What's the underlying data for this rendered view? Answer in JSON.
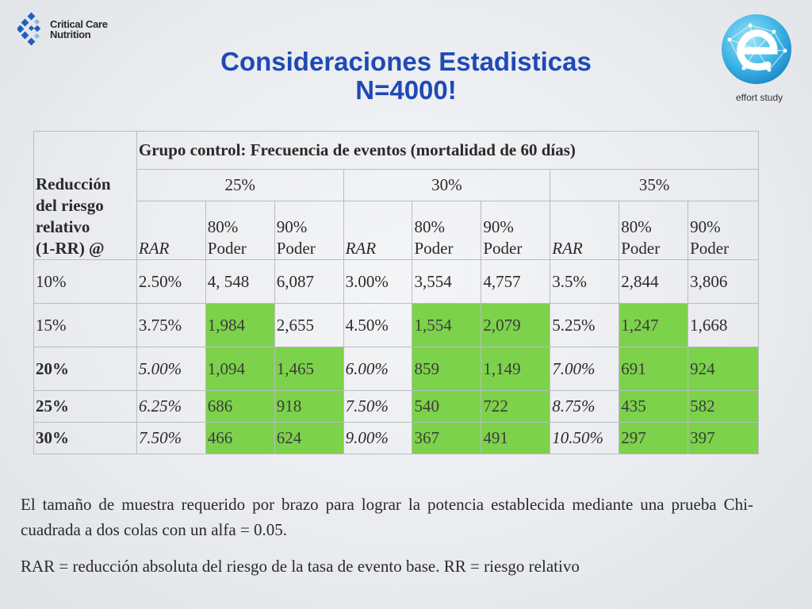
{
  "logo_left": {
    "line1": "Critical Care",
    "line2": "Nutrition",
    "icon": "ccn-logo-icon"
  },
  "logo_right": {
    "label": "effort study",
    "icon": "effort-globe-icon"
  },
  "title": {
    "line1": "Consideraciones Estadisticas",
    "line2": "N=4000!"
  },
  "table": {
    "row_header": [
      "Reducción",
      "del riesgo",
      "relativo",
      "(1-RR) @"
    ],
    "group_header": "Grupo control: Frecuencia de eventos (mortalidad de 60 días)",
    "groups": [
      "25%",
      "30%",
      "35%"
    ],
    "sub_headers": {
      "rar": "RAR",
      "p80": [
        "80%",
        "Poder"
      ],
      "p90": [
        "90%",
        "Poder"
      ]
    },
    "rows": [
      {
        "label": "10%",
        "bold": false,
        "italic_rar": false,
        "cells": [
          "2.50%",
          "4, 548",
          "6,087",
          "3.00%",
          "3,554",
          "4,757",
          "3.5%",
          "2,844",
          "3,806"
        ],
        "green": [
          false,
          false,
          false,
          false,
          false,
          false,
          false,
          false,
          false
        ]
      },
      {
        "label": "15%",
        "bold": false,
        "italic_rar": false,
        "cells": [
          "3.75%",
          "1,984",
          "2,655",
          "4.50%",
          "1,554",
          "2,079",
          "5.25%",
          "1,247",
          "1,668"
        ],
        "green": [
          false,
          true,
          false,
          false,
          true,
          true,
          false,
          true,
          false
        ]
      },
      {
        "label": "20%",
        "bold": true,
        "italic_rar": true,
        "cells": [
          "5.00%",
          "1,094",
          "1,465",
          "6.00%",
          "859",
          "1,149",
          "7.00%",
          "691",
          "924"
        ],
        "green": [
          false,
          true,
          true,
          false,
          true,
          true,
          false,
          true,
          true
        ]
      },
      {
        "label": "25%",
        "bold": true,
        "italic_rar": true,
        "cells": [
          "6.25%",
          "686",
          "918",
          "7.50%",
          "540",
          "722",
          "8.75%",
          "435",
          "582"
        ],
        "green": [
          false,
          true,
          true,
          false,
          true,
          true,
          false,
          true,
          true
        ]
      },
      {
        "label": "30%",
        "bold": true,
        "italic_rar": true,
        "cells": [
          "7.50%",
          "466",
          "624",
          "9.00%",
          "367",
          "491",
          "10.50%",
          "297",
          "397"
        ],
        "green": [
          false,
          true,
          true,
          false,
          true,
          true,
          false,
          true,
          true
        ]
      }
    ]
  },
  "notes": {
    "line1": "El tamaño de muestra requerido por brazo para lograr la potencia establecida mediante una prueba Chi-cuadrada a dos colas con un alfa  = 0.05.",
    "line2": "RAR = reducción absoluta del riesgo de la tasa de evento base. RR = riesgo relativo"
  },
  "colors": {
    "title": "#1f49b6",
    "highlight": "#7cd24a",
    "border": "#b9bcc0"
  }
}
